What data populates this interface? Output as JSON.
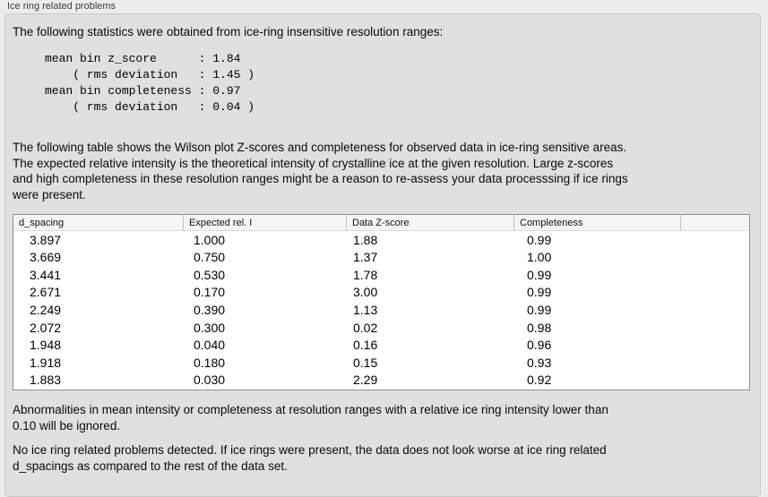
{
  "panel": {
    "title": "Ice ring related problems"
  },
  "colors": {
    "page_bg": "#ececec",
    "groupbox_bg": "#e0e0e0",
    "table_header_bg": "#f5f5f5",
    "table_border": "#8f8f8f"
  },
  "intro": "The following statistics were obtained from ice-ring insensitive resolution ranges:",
  "stats": {
    "lines": [
      "mean bin z_score      : 1.84",
      "    ( rms deviation   : 1.45 )",
      "mean bin completeness : 0.97",
      "    ( rms deviation   : 0.04 )"
    ]
  },
  "description": {
    "lines": [
      "The following table shows the Wilson plot Z-scores and completeness for observed data in ice-ring sensitive areas.",
      "The expected relative intensity is the theoretical intensity of crystalline ice at the given resolution. Large z-scores",
      "and high completeness in these resolution ranges might be a reason to re-assess your data processsing if ice rings",
      "were present."
    ]
  },
  "table": {
    "columns": [
      "d_spacing",
      "Expected rel. I",
      "Data Z-score",
      "Completeness",
      ""
    ],
    "rows": [
      [
        "3.897",
        "1.000",
        "1.88",
        "0.99"
      ],
      [
        "3.669",
        "0.750",
        "1.37",
        "1.00"
      ],
      [
        "3.441",
        "0.530",
        "1.78",
        "0.99"
      ],
      [
        "2.671",
        "0.170",
        "3.00",
        "0.99"
      ],
      [
        "2.249",
        "0.390",
        "1.13",
        "0.99"
      ],
      [
        "2.072",
        "0.300",
        "0.02",
        "0.98"
      ],
      [
        "1.948",
        "0.040",
        "0.16",
        "0.96"
      ],
      [
        "1.918",
        "0.180",
        "0.15",
        "0.93"
      ],
      [
        "1.883",
        "0.030",
        "2.29",
        "0.92"
      ]
    ]
  },
  "note": {
    "lines": [
      "Abnormalities in mean intensity or completeness at resolution ranges with a relative ice ring intensity lower than",
      "0.10 will be ignored."
    ]
  },
  "conclusion": {
    "lines": [
      "No ice ring related problems detected. If ice rings were present, the data does not look worse at ice ring related",
      "d_spacings as compared to the rest of the data set."
    ]
  }
}
